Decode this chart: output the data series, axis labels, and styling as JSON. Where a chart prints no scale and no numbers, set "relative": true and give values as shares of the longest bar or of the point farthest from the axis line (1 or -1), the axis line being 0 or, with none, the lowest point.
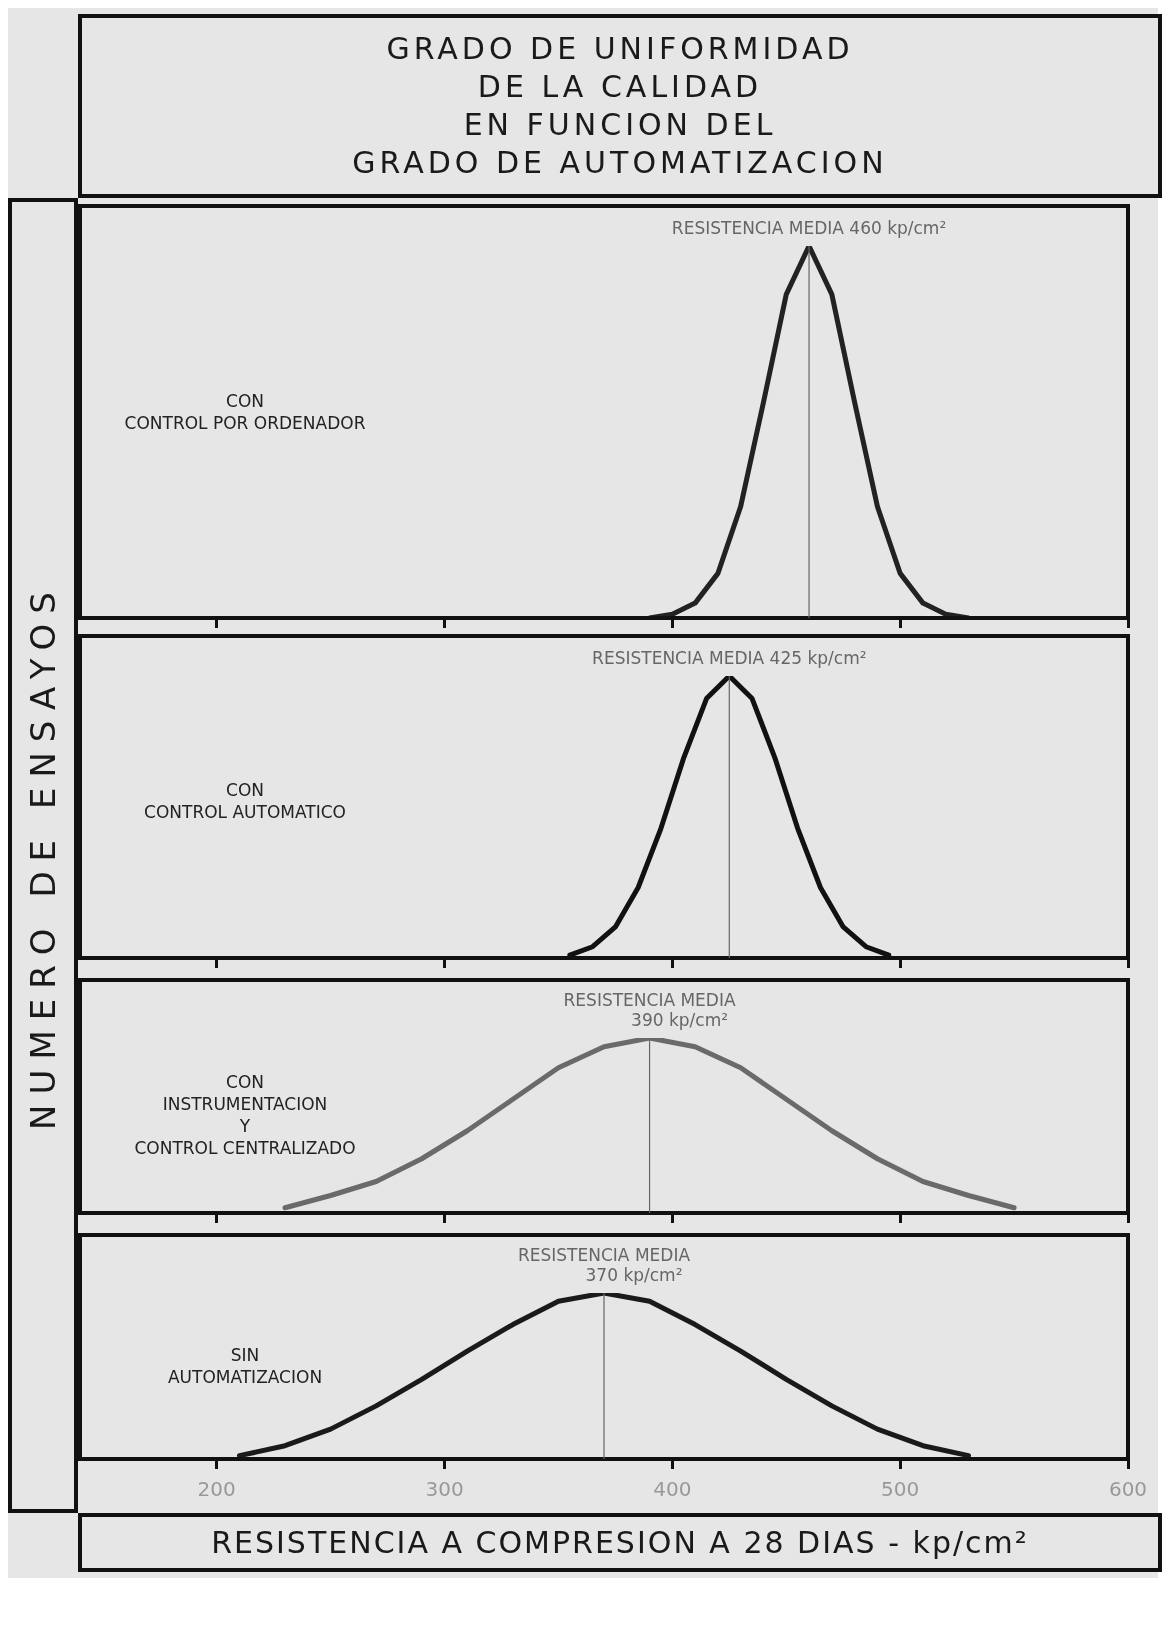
{
  "chart_data": [
    {
      "type": "line",
      "title": "GRADO DE UNIFORMIDAD\nDE LA CALIDAD\nEN FUNCION DEL\nGRADO DE AUTOMATIZACION",
      "ylabel": "NUMERO DE ENSAYOS",
      "annotations": [
        "CON\nCONTROL POR ORDENADOR"
      ],
      "relative": true,
      "xlim": [
        140,
        600
      ],
      "xticks": [
        200,
        300,
        400,
        500,
        600
      ],
      "tick_labels": false,
      "legend": false,
      "grid": false,
      "marker": "none",
      "series": [
        {
          "color": "#222222",
          "x": [
            390,
            400,
            410,
            420,
            430,
            440,
            450,
            460,
            470,
            480,
            490,
            500,
            510,
            520,
            530
          ],
          "values": [
            0,
            0.01,
            0.04,
            0.12,
            0.3,
            0.58,
            0.87,
            1,
            0.87,
            0.58,
            0.3,
            0.12,
            0.04,
            0.01,
            0
          ]
        }
      ],
      "ref_lines": [
        {
          "axis": "x",
          "value": 460,
          "label": "RESISTENCIA MEDIA 460 kp/cm²",
          "color": "#666666"
        }
      ]
    },
    {
      "type": "line",
      "annotations": [
        "CON\nCONTROL AUTOMATICO"
      ],
      "relative": true,
      "xlim": [
        140,
        600
      ],
      "xticks": [
        200,
        300,
        400,
        500,
        600
      ],
      "tick_labels": false,
      "legend": false,
      "grid": false,
      "marker": "none",
      "series": [
        {
          "color": "#111111",
          "x": [
            355,
            365,
            375,
            385,
            395,
            405,
            415,
            425,
            435,
            445,
            455,
            465,
            475,
            485,
            495
          ],
          "values": [
            0.01,
            0.04,
            0.11,
            0.25,
            0.46,
            0.71,
            0.92,
            1,
            0.92,
            0.71,
            0.46,
            0.25,
            0.11,
            0.04,
            0.01
          ]
        }
      ],
      "ref_lines": [
        {
          "axis": "x",
          "value": 425,
          "label": "RESISTENCIA MEDIA 425 kp/cm²",
          "color": "#666666"
        }
      ]
    },
    {
      "type": "line",
      "annotations": [
        "CON\nINSTRUMENTACION\nY\nCONTROL CENTRALIZADO"
      ],
      "relative": true,
      "xlim": [
        140,
        600
      ],
      "xticks": [
        200,
        300,
        400,
        500,
        600
      ],
      "tick_labels": false,
      "legend": false,
      "grid": false,
      "marker": "none",
      "series": [
        {
          "color": "#6a6a6a",
          "x": [
            230,
            250,
            270,
            290,
            310,
            330,
            350,
            370,
            390,
            410,
            430,
            450,
            470,
            490,
            510,
            530,
            550
          ],
          "values": [
            0.03,
            0.1,
            0.18,
            0.31,
            0.47,
            0.65,
            0.83,
            0.95,
            1,
            0.95,
            0.83,
            0.65,
            0.47,
            0.31,
            0.18,
            0.1,
            0.03
          ]
        }
      ],
      "ref_lines": [
        {
          "axis": "x",
          "value": 390,
          "label": "RESISTENCIA MEDIA\n390 kp/cm²",
          "color": "#666666"
        }
      ]
    },
    {
      "type": "line",
      "xlabel": "RESISTENCIA A COMPRESION A 28 DIAS - kp/cm²",
      "annotations": [
        "SIN\nAUTOMATIZACION"
      ],
      "relative": true,
      "xlim": [
        140,
        600
      ],
      "xticks": [
        200,
        300,
        400,
        500,
        600
      ],
      "tick_labels": "x",
      "legend": false,
      "grid": false,
      "marker": "none",
      "series": [
        {
          "color": "#1a1a1a",
          "x": [
            210,
            230,
            250,
            270,
            290,
            310,
            330,
            350,
            370,
            390,
            410,
            430,
            450,
            470,
            490,
            510,
            530
          ],
          "values": [
            0.02,
            0.08,
            0.18,
            0.32,
            0.48,
            0.65,
            0.81,
            0.95,
            1,
            0.95,
            0.81,
            0.65,
            0.48,
            0.32,
            0.18,
            0.08,
            0.02
          ]
        }
      ],
      "ref_lines": [
        {
          "axis": "x",
          "value": 370,
          "label": "RESISTENCIA MEDIA\n370 kp/cm²",
          "color": "#666666"
        }
      ]
    }
  ]
}
